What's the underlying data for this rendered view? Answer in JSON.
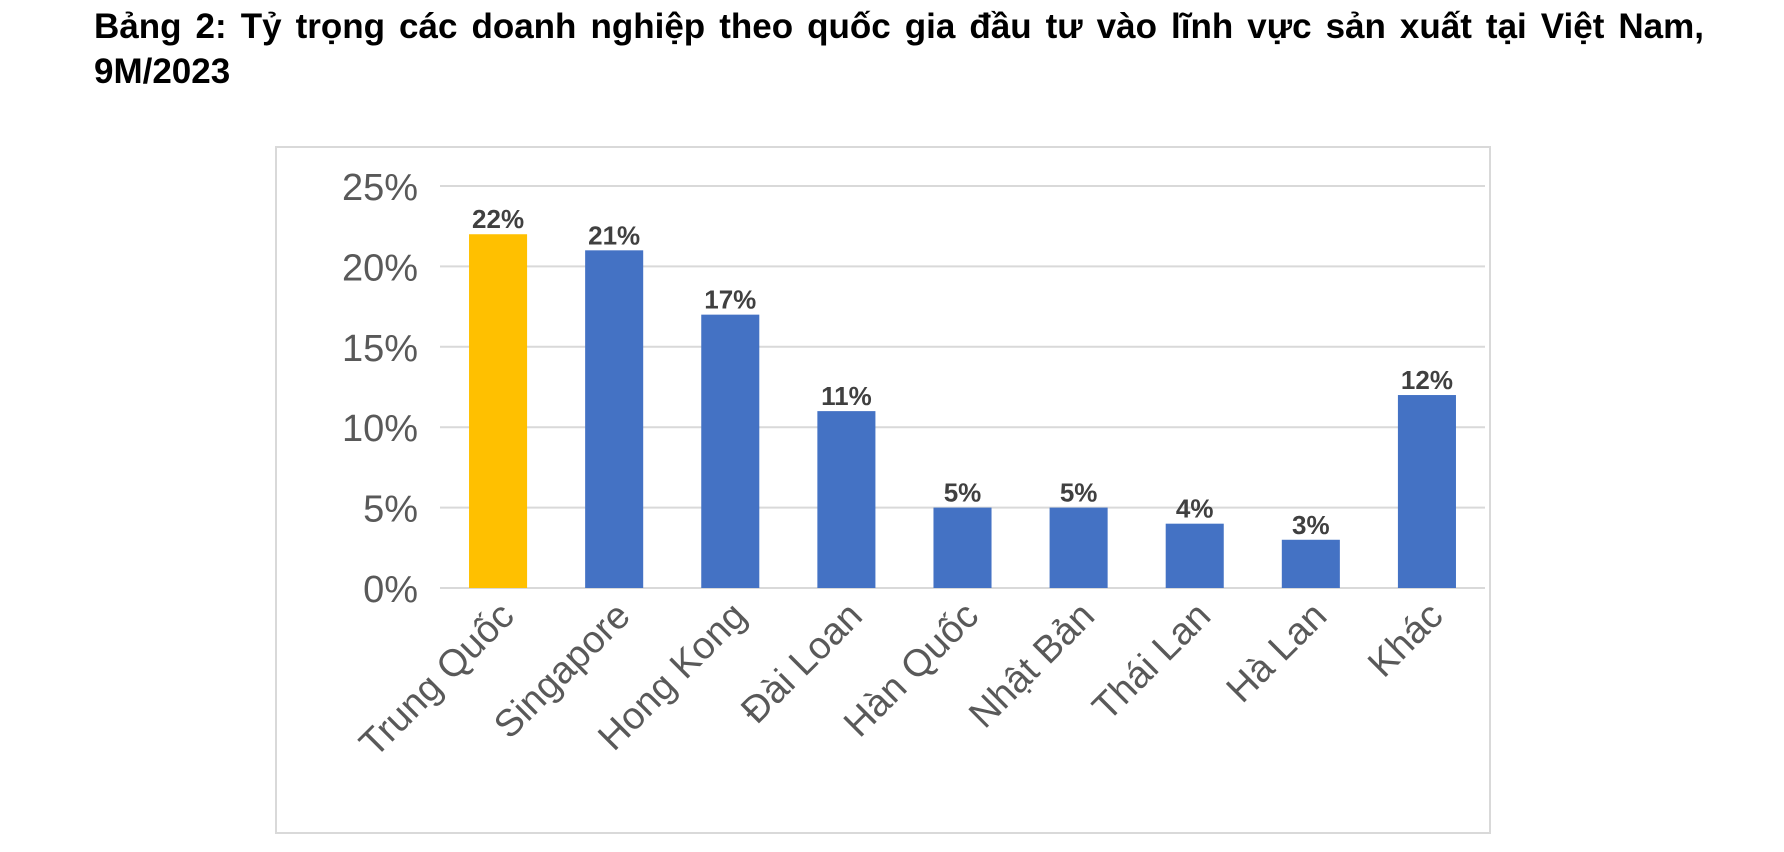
{
  "page": {
    "title": "Bảng 2: Tỷ trọng các doanh nghiệp theo quốc gia đầu tư vào lĩnh vực sản xuất tại Việt Nam, 9M/2023"
  },
  "chart_data": {
    "type": "bar",
    "title": "",
    "xlabel": "",
    "ylabel": "",
    "categories": [
      "Trung Quốc",
      "Singapore",
      "Hong Kong",
      "Đài Loan",
      "Hàn Quốc",
      "Nhật Bản",
      "Thái Lan",
      "Hà Lan",
      "Khác"
    ],
    "values": [
      22,
      21,
      17,
      11,
      5,
      5,
      4,
      3,
      12
    ],
    "data_labels": [
      "22%",
      "21%",
      "17%",
      "11%",
      "5%",
      "5%",
      "4%",
      "3%",
      "12%"
    ],
    "ylim": [
      0,
      25
    ],
    "yticks": [
      0,
      5,
      10,
      15,
      20,
      25
    ],
    "ytick_labels": [
      "0%",
      "5%",
      "10%",
      "15%",
      "20%",
      "25%"
    ],
    "grid": true,
    "legend": "none",
    "colors": {
      "default_bar": "#4472c4",
      "highlight_bar": "#ffc000",
      "highlight_category": "Trung Quốc",
      "gridline": "#d9d9d9",
      "tick_label": "#595959",
      "data_label": "#404040"
    }
  }
}
